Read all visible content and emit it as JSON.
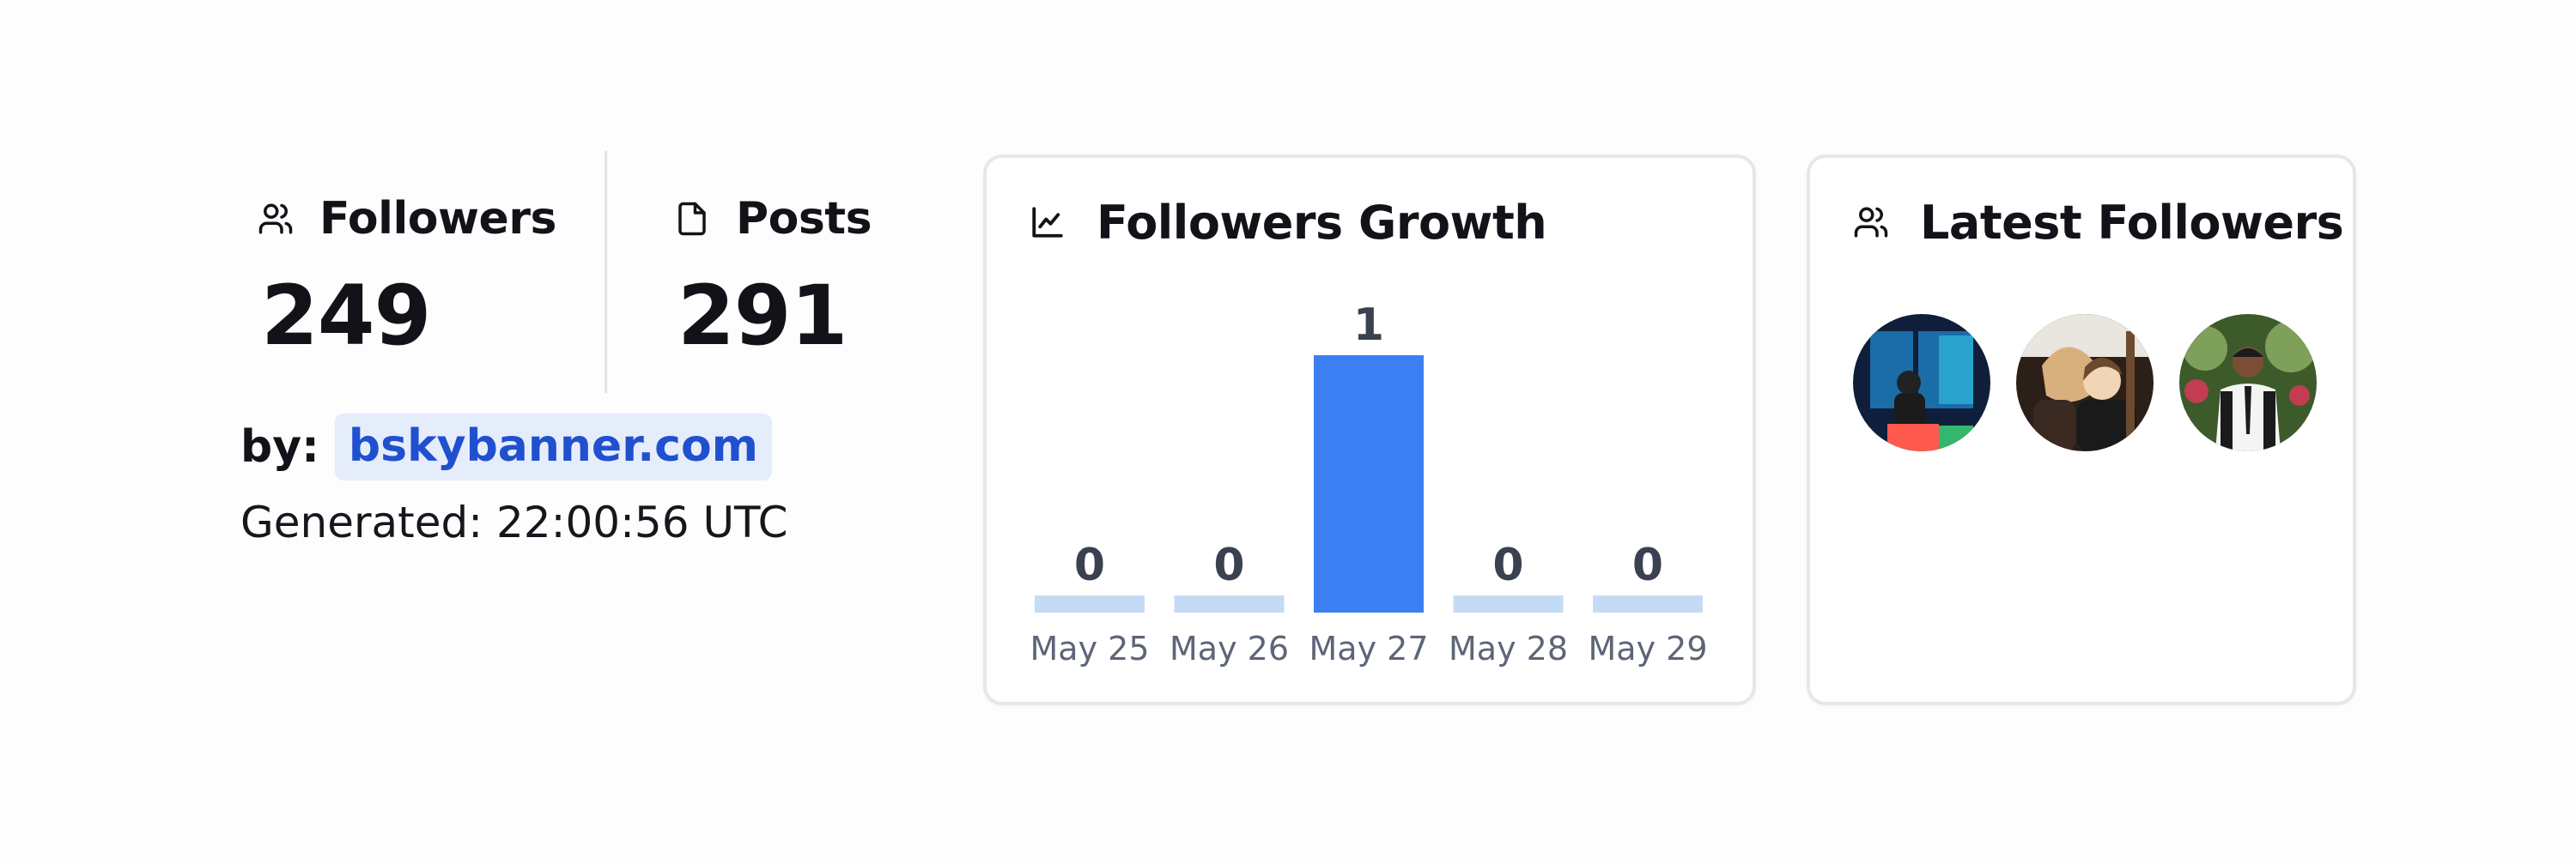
{
  "stats": {
    "followers": {
      "label": "Followers",
      "value": "249",
      "icon": "users-icon"
    },
    "posts": {
      "label": "Posts",
      "value": "291",
      "icon": "file-icon"
    }
  },
  "byline": {
    "label": "by:",
    "link": "bskybanner.com"
  },
  "generated": "Generated: 22:00:56 UTC",
  "growth_card": {
    "title": "Followers Growth",
    "icon": "line-chart-icon"
  },
  "latest_card": {
    "title": "Latest Followers",
    "icon": "users-icon",
    "avatars": [
      {
        "name": "follower-avatar-1",
        "palette": [
          "#0f1e3a",
          "#1f8fd6",
          "#36c7e8",
          "#ff5a4f"
        ]
      },
      {
        "name": "follower-avatar-2",
        "palette": [
          "#2b1f18",
          "#d8b07e",
          "#f0d6b4",
          "#6b4a2e"
        ]
      },
      {
        "name": "follower-avatar-3",
        "palette": [
          "#3d5a2a",
          "#7fa05a",
          "#c23c52",
          "#f4f4f2"
        ]
      }
    ]
  },
  "colors": {
    "bar_active": "#3b7ff2",
    "bar_inactive": "#c4dbf6",
    "link": "#2150cf",
    "link_bg": "#e5edfb"
  },
  "chart_data": {
    "type": "bar",
    "title": "Followers Growth",
    "categories": [
      "May 25",
      "May 26",
      "May 27",
      "May 28",
      "May 29"
    ],
    "values": [
      0,
      0,
      1,
      0,
      0
    ],
    "xlabel": "",
    "ylabel": "",
    "ylim": [
      0,
      1
    ],
    "grid": false,
    "data_labels": true
  }
}
